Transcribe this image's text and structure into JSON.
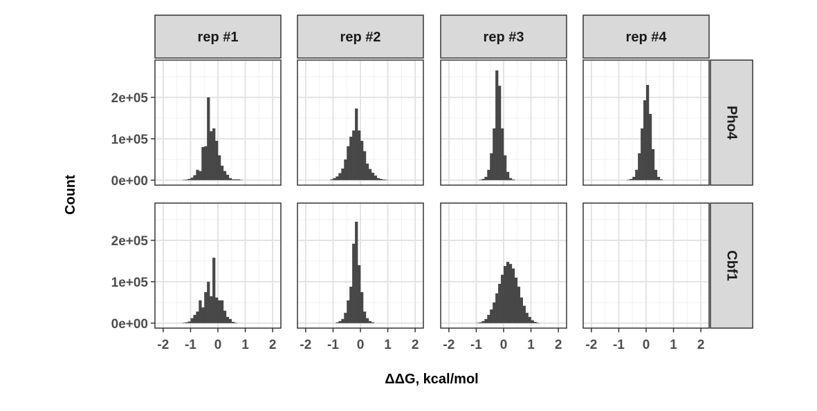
{
  "chart_data": {
    "type": "bar",
    "layout": "facet_grid",
    "xlabel": "ΔΔG, kcal/mol",
    "ylabel": "Count",
    "col_labels": [
      "rep #1",
      "rep #2",
      "rep #3",
      "rep #4"
    ],
    "row_labels": [
      "Pho4",
      "Cbf1"
    ],
    "xlim": [
      -2.3,
      2.3
    ],
    "ylim": [
      -12000,
      290000
    ],
    "x_ticks": [
      -2,
      -1,
      0,
      1,
      2
    ],
    "x_tick_labels": [
      "-2",
      "-1",
      "0",
      "1",
      "2"
    ],
    "y_ticks": [
      0,
      100000,
      200000
    ],
    "y_tick_labels": [
      "0e+00",
      "1e+05",
      "2e+05"
    ],
    "grid": true,
    "bin_width": 0.1,
    "bin_start": -2.0,
    "panels": [
      {
        "row": "Pho4",
        "col": "rep #1",
        "values": [
          0,
          0,
          0,
          0,
          0,
          0,
          0,
          500,
          1500,
          3000,
          6000,
          12000,
          25000,
          22000,
          80000,
          82000,
          200000,
          118000,
          125000,
          95000,
          60000,
          35000,
          22000,
          13000,
          5000,
          2000,
          2000,
          2000,
          500,
          0,
          0,
          0,
          0,
          0,
          0,
          0,
          0,
          0,
          0,
          0
        ]
      },
      {
        "row": "Pho4",
        "col": "rep #2",
        "values": [
          0,
          0,
          0,
          0,
          0,
          0,
          0,
          0,
          0,
          2000,
          5000,
          9000,
          17000,
          28000,
          50000,
          82000,
          105000,
          120000,
          173000,
          120000,
          95000,
          70000,
          40000,
          27000,
          18000,
          11000,
          5000,
          3000,
          1500,
          500,
          0,
          0,
          0,
          0,
          0,
          0,
          0,
          0,
          0,
          0
        ]
      },
      {
        "row": "Pho4",
        "col": "rep #3",
        "values": [
          0,
          0,
          0,
          0,
          0,
          0,
          0,
          0,
          0,
          0,
          0,
          1000,
          3000,
          8000,
          25000,
          65000,
          125000,
          265000,
          228000,
          125000,
          60000,
          20000,
          5000,
          1500,
          0,
          0,
          0,
          0,
          0,
          0,
          0,
          0,
          0,
          0,
          0,
          0,
          0,
          0,
          0,
          0
        ]
      },
      {
        "row": "Pho4",
        "col": "rep #4",
        "values": [
          0,
          0,
          0,
          0,
          0,
          0,
          0,
          0,
          0,
          0,
          0,
          0,
          0,
          1000,
          3000,
          8000,
          25000,
          65000,
          125000,
          193000,
          230000,
          160000,
          75000,
          25000,
          8000,
          2000,
          0,
          0,
          0,
          0,
          0,
          0,
          0,
          0,
          0,
          0,
          0,
          0,
          0,
          0
        ]
      },
      {
        "row": "Cbf1",
        "col": "rep #1",
        "values": [
          0,
          0,
          0,
          0,
          0,
          0,
          0,
          500,
          2000,
          4000,
          12000,
          20000,
          28000,
          55000,
          38000,
          75000,
          100000,
          65000,
          158000,
          62000,
          55000,
          55000,
          30000,
          15000,
          10000,
          3000,
          1000,
          0,
          0,
          0,
          0,
          0,
          0,
          0,
          0,
          0,
          0,
          0,
          0,
          0
        ]
      },
      {
        "row": "Cbf1",
        "col": "rep #2",
        "values": [
          0,
          0,
          0,
          0,
          0,
          0,
          0,
          0,
          0,
          0,
          0,
          2000,
          5000,
          10000,
          25000,
          55000,
          88000,
          192000,
          245000,
          140000,
          75000,
          28000,
          12000,
          5000,
          2000,
          0,
          0,
          0,
          0,
          0,
          0,
          0,
          0,
          0,
          0,
          0,
          0,
          0,
          0,
          0
        ]
      },
      {
        "row": "Cbf1",
        "col": "rep #3",
        "values": [
          0,
          0,
          0,
          0,
          0,
          0,
          0,
          0,
          0,
          0,
          500,
          2000,
          5000,
          10000,
          20000,
          33000,
          50000,
          72000,
          95000,
          117000,
          138000,
          148000,
          143000,
          132000,
          110000,
          88000,
          62000,
          42000,
          25000,
          15000,
          7000,
          3000,
          1000,
          0,
          0,
          0,
          0,
          0,
          0,
          0
        ]
      },
      {
        "row": "Cbf1",
        "col": "rep #4",
        "values": []
      }
    ]
  }
}
